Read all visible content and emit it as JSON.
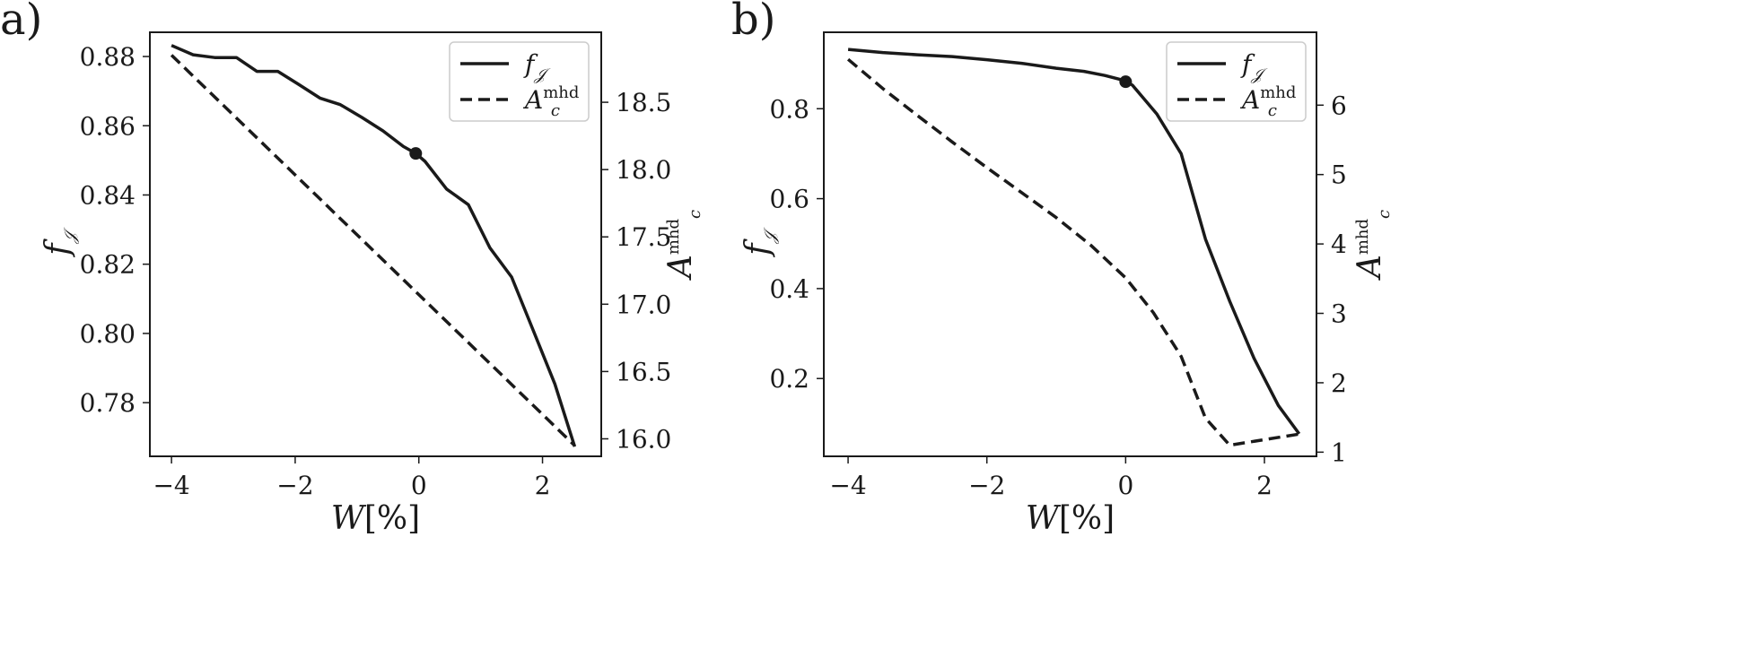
{
  "chart_data": [
    {
      "panel_label": "a)",
      "type": "line",
      "xlabel": {
        "main": "W",
        "unit": "[%]"
      },
      "ylabel": {
        "main": "f",
        "sub": "𝒥"
      },
      "y2label": {
        "main": "A",
        "sub": "c",
        "sup": "mhd"
      },
      "xlim": [
        -4.35,
        2.95
      ],
      "ylim": [
        0.7645,
        0.887
      ],
      "y2lim": [
        15.87,
        19.02
      ],
      "xticks": [
        -4,
        -2,
        0,
        2
      ],
      "xtick_labels": [
        "−4",
        "−2",
        "0",
        "2"
      ],
      "yticks": [
        0.78,
        0.8,
        0.82,
        0.84,
        0.86,
        0.88
      ],
      "ytick_labels": [
        "0.78",
        "0.80",
        "0.82",
        "0.84",
        "0.86",
        "0.88"
      ],
      "y2ticks": [
        16.0,
        16.5,
        17.0,
        17.5,
        18.0,
        18.5
      ],
      "y2tick_labels": [
        "16.0",
        "16.5",
        "17.0",
        "17.5",
        "18.0",
        "18.5"
      ],
      "legend": {
        "position": "top-right",
        "entries": [
          {
            "main": "f",
            "sub": "𝒥",
            "style": "solid"
          },
          {
            "main": "A",
            "sub": "c",
            "sup": "mhd",
            "style": "dashed"
          }
        ]
      },
      "marker": {
        "x": -0.05,
        "y": 0.852
      },
      "series": [
        {
          "axis": "left",
          "style": "solid",
          "x": [
            -4.0,
            -3.65,
            -3.3,
            -2.95,
            -2.62,
            -2.28,
            -1.95,
            -1.6,
            -1.27,
            -0.92,
            -0.58,
            -0.25,
            -0.05,
            0.1,
            0.45,
            0.8,
            1.15,
            1.5,
            1.85,
            2.2,
            2.52
          ],
          "y": [
            0.8832,
            0.8805,
            0.8797,
            0.8797,
            0.8757,
            0.8757,
            0.872,
            0.868,
            0.8661,
            0.8624,
            0.8585,
            0.854,
            0.852,
            0.8497,
            0.8417,
            0.8372,
            0.8247,
            0.8163,
            0.8009,
            0.7854,
            0.7673
          ]
        },
        {
          "axis": "right",
          "style": "dashed",
          "x": [
            -4.0,
            2.52
          ],
          "y": [
            18.85,
            15.95
          ]
        }
      ]
    },
    {
      "panel_label": "b)",
      "type": "line",
      "xlabel": {
        "main": "W",
        "unit": "[%]"
      },
      "ylabel": {
        "main": "f",
        "sub": "𝒥"
      },
      "y2label": {
        "main": "A",
        "sub": "c",
        "sup": "mhd"
      },
      "xlim": [
        -4.35,
        2.75
      ],
      "ylim": [
        0.027,
        0.97
      ],
      "y2lim": [
        0.94,
        7.05
      ],
      "xticks": [
        -4,
        -2,
        0,
        2
      ],
      "xtick_labels": [
        "−4",
        "−2",
        "0",
        "2"
      ],
      "yticks": [
        0.2,
        0.4,
        0.6,
        0.8
      ],
      "ytick_labels": [
        "0.2",
        "0.4",
        "0.6",
        "0.8"
      ],
      "y2ticks": [
        1,
        2,
        3,
        4,
        5,
        6
      ],
      "y2tick_labels": [
        "1",
        "2",
        "3",
        "4",
        "5",
        "6"
      ],
      "legend": {
        "position": "top-right",
        "entries": [
          {
            "main": "f",
            "sub": "𝒥",
            "style": "solid"
          },
          {
            "main": "A",
            "sub": "c",
            "sup": "mhd",
            "style": "dashed"
          }
        ]
      },
      "marker": {
        "x": 0.0,
        "y": 0.86
      },
      "series": [
        {
          "axis": "left",
          "style": "solid",
          "x": [
            -4.0,
            -3.5,
            -3.0,
            -2.5,
            -2.0,
            -1.5,
            -1.0,
            -0.6,
            -0.3,
            0.0,
            0.1,
            0.45,
            0.8,
            1.15,
            1.5,
            1.85,
            2.2,
            2.5
          ],
          "y": [
            0.932,
            0.925,
            0.92,
            0.916,
            0.909,
            0.901,
            0.89,
            0.883,
            0.874,
            0.862,
            0.852,
            0.788,
            0.7,
            0.51,
            0.372,
            0.245,
            0.14,
            0.077
          ]
        },
        {
          "axis": "right",
          "style": "dashed",
          "x": [
            -4.0,
            -3.5,
            -3.0,
            -2.5,
            -2.0,
            -1.5,
            -1.0,
            -0.5,
            0.0,
            0.4,
            0.8,
            1.15,
            1.5,
            2.0,
            2.5
          ],
          "y": [
            6.66,
            6.24,
            5.85,
            5.47,
            5.1,
            4.74,
            4.38,
            3.98,
            3.51,
            3.01,
            2.38,
            1.49,
            1.1,
            1.18,
            1.26
          ]
        }
      ]
    }
  ]
}
